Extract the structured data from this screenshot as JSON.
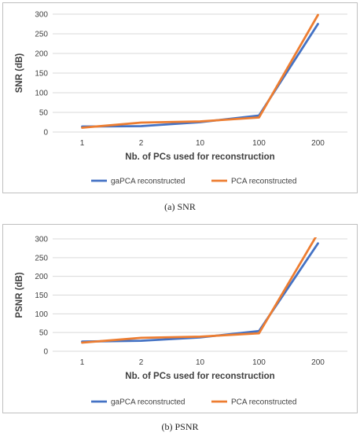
{
  "colors": {
    "gapca": "#4472C4",
    "pca": "#ED7D31",
    "grid": "#d9d9d9"
  },
  "chart_data": [
    {
      "type": "line",
      "caption": "(a)  SNR",
      "categories": [
        "1",
        "2",
        "10",
        "100",
        "200"
      ],
      "xlabel": "Nb. of PCs used for reconstruction",
      "ylabel": "SNR (dB)",
      "ylim": [
        0,
        300
      ],
      "yticks": [
        "0",
        "50",
        "100",
        "150",
        "200",
        "250",
        "300"
      ],
      "grid": true,
      "legend": "bottom",
      "series": [
        {
          "name": "gaPCA reconstructed",
          "color": "#4472C4",
          "values": [
            14,
            15,
            25,
            42,
            275
          ]
        },
        {
          "name": "PCA reconstructed",
          "color": "#ED7D31",
          "values": [
            11,
            24,
            27,
            37,
            298
          ]
        }
      ]
    },
    {
      "type": "line",
      "caption": "(b)  PSNR",
      "categories": [
        "1",
        "2",
        "10",
        "100",
        "200"
      ],
      "xlabel": "Nb. of PCs used for reconstruction",
      "ylabel": "PSNR (dB)",
      "ylim": [
        0,
        300
      ],
      "yticks": [
        "0",
        "50",
        "100",
        "150",
        "200",
        "250",
        "300"
      ],
      "grid": true,
      "legend": "bottom",
      "series": [
        {
          "name": "gaPCA reconstructed",
          "color": "#4472C4",
          "values": [
            26,
            28,
            37,
            54,
            288
          ]
        },
        {
          "name": "PCA reconstructed",
          "color": "#ED7D31",
          "values": [
            23,
            36,
            39,
            48,
            315
          ]
        }
      ]
    }
  ]
}
